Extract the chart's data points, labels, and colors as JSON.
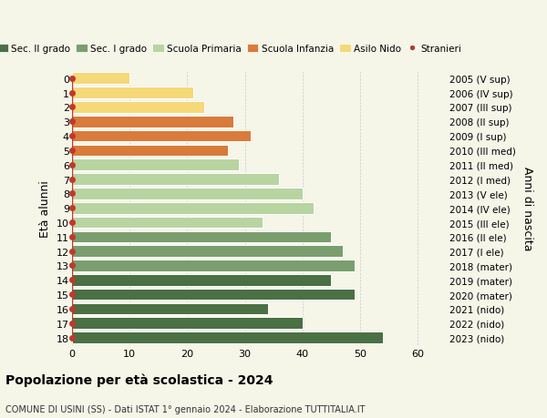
{
  "ages": [
    18,
    17,
    16,
    15,
    14,
    13,
    12,
    11,
    10,
    9,
    8,
    7,
    6,
    5,
    4,
    3,
    2,
    1,
    0
  ],
  "values": [
    54,
    40,
    34,
    49,
    45,
    49,
    47,
    45,
    33,
    42,
    40,
    36,
    29,
    27,
    31,
    28,
    23,
    21,
    10
  ],
  "right_labels": [
    "2005 (V sup)",
    "2006 (IV sup)",
    "2007 (III sup)",
    "2008 (II sup)",
    "2009 (I sup)",
    "2010 (III med)",
    "2011 (II med)",
    "2012 (I med)",
    "2013 (V ele)",
    "2014 (IV ele)",
    "2015 (III ele)",
    "2016 (II ele)",
    "2017 (I ele)",
    "2018 (mater)",
    "2019 (mater)",
    "2020 (mater)",
    "2021 (nido)",
    "2022 (nido)",
    "2023 (nido)"
  ],
  "bar_colors": [
    "#4a7043",
    "#4a7043",
    "#4a7043",
    "#4a7043",
    "#4a7043",
    "#7a9e6e",
    "#7a9e6e",
    "#7a9e6e",
    "#b8d4a0",
    "#b8d4a0",
    "#b8d4a0",
    "#b8d4a0",
    "#b8d4a0",
    "#d97b3a",
    "#d97b3a",
    "#d97b3a",
    "#f5d878",
    "#f5d878",
    "#f5d878"
  ],
  "legend_labels": [
    "Sec. II grado",
    "Sec. I grado",
    "Scuola Primaria",
    "Scuola Infanzia",
    "Asilo Nido",
    "Stranieri"
  ],
  "legend_colors": [
    "#4a7043",
    "#7a9e6e",
    "#b8d4a0",
    "#d97b3a",
    "#f5d878",
    "#c0392b"
  ],
  "ylabel": "Età alunni",
  "right_ylabel": "Anni di nascita",
  "title": "Popolazione per età scolastica - 2024",
  "subtitle": "COMUNE DI USINI (SS) - Dati ISTAT 1° gennaio 2024 - Elaborazione TUTTITALIA.IT",
  "xlim": [
    0,
    65
  ],
  "xticks": [
    0,
    10,
    20,
    30,
    40,
    50,
    60
  ],
  "background_color": "#f5f5e8",
  "grid_color": "#cccccc",
  "stranieri_color": "#c0392b",
  "bar_edge_color": "#ffffff"
}
